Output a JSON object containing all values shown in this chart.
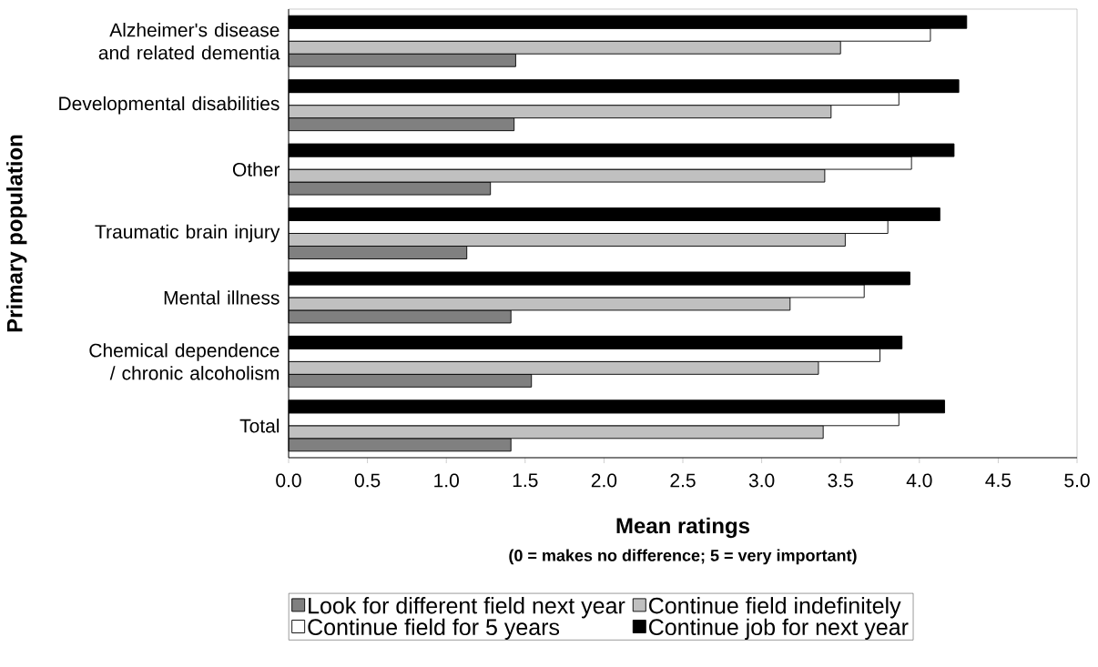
{
  "chart_data": {
    "type": "bar",
    "orientation": "horizontal",
    "xlabel": "Mean ratings",
    "ylabel": "Primary population",
    "annotations": [
      "(0 = makes no difference; 5 = very important)"
    ],
    "categories": [
      "Alzheimer's disease and related dementia",
      "Developmental disabilities",
      "Other",
      "Traumatic brain injury",
      "Mental illness",
      "Chemical dependence / chronic alcoholism",
      "Total"
    ],
    "series": [
      {
        "name": "Look for different field next year",
        "color": "#808080",
        "values": [
          1.44,
          1.43,
          1.28,
          1.13,
          1.41,
          1.54,
          1.41
        ]
      },
      {
        "name": "Continue field indefinitely",
        "color": "#c0c0c0",
        "values": [
          3.5,
          3.44,
          3.4,
          3.53,
          3.18,
          3.36,
          3.39
        ]
      },
      {
        "name": "Continue field for 5 years",
        "color": "#ffffff",
        "values": [
          4.07,
          3.87,
          3.95,
          3.8,
          3.65,
          3.75,
          3.87
        ]
      },
      {
        "name": "Continue job for next year",
        "color": "#000000",
        "values": [
          4.3,
          4.25,
          4.22,
          4.13,
          3.94,
          3.89,
          4.16
        ]
      }
    ],
    "xlim": [
      0,
      5
    ],
    "xticks": [
      {
        "value": 0,
        "label": "0.0"
      },
      {
        "value": 0.5,
        "label": "0.5"
      },
      {
        "value": 1,
        "label": "1.0"
      },
      {
        "value": 1.5,
        "label": "1.5"
      },
      {
        "value": 2,
        "label": "2.0"
      },
      {
        "value": 2.5,
        "label": "2.5"
      },
      {
        "value": 3,
        "label": "3.0"
      },
      {
        "value": 3.5,
        "label": "3.5"
      },
      {
        "value": 4,
        "label": "4.0"
      },
      {
        "value": 4.5,
        "label": "4.5"
      },
      {
        "value": 5,
        "label": "5.0"
      }
    ],
    "grid": false,
    "legend": "bottom"
  }
}
